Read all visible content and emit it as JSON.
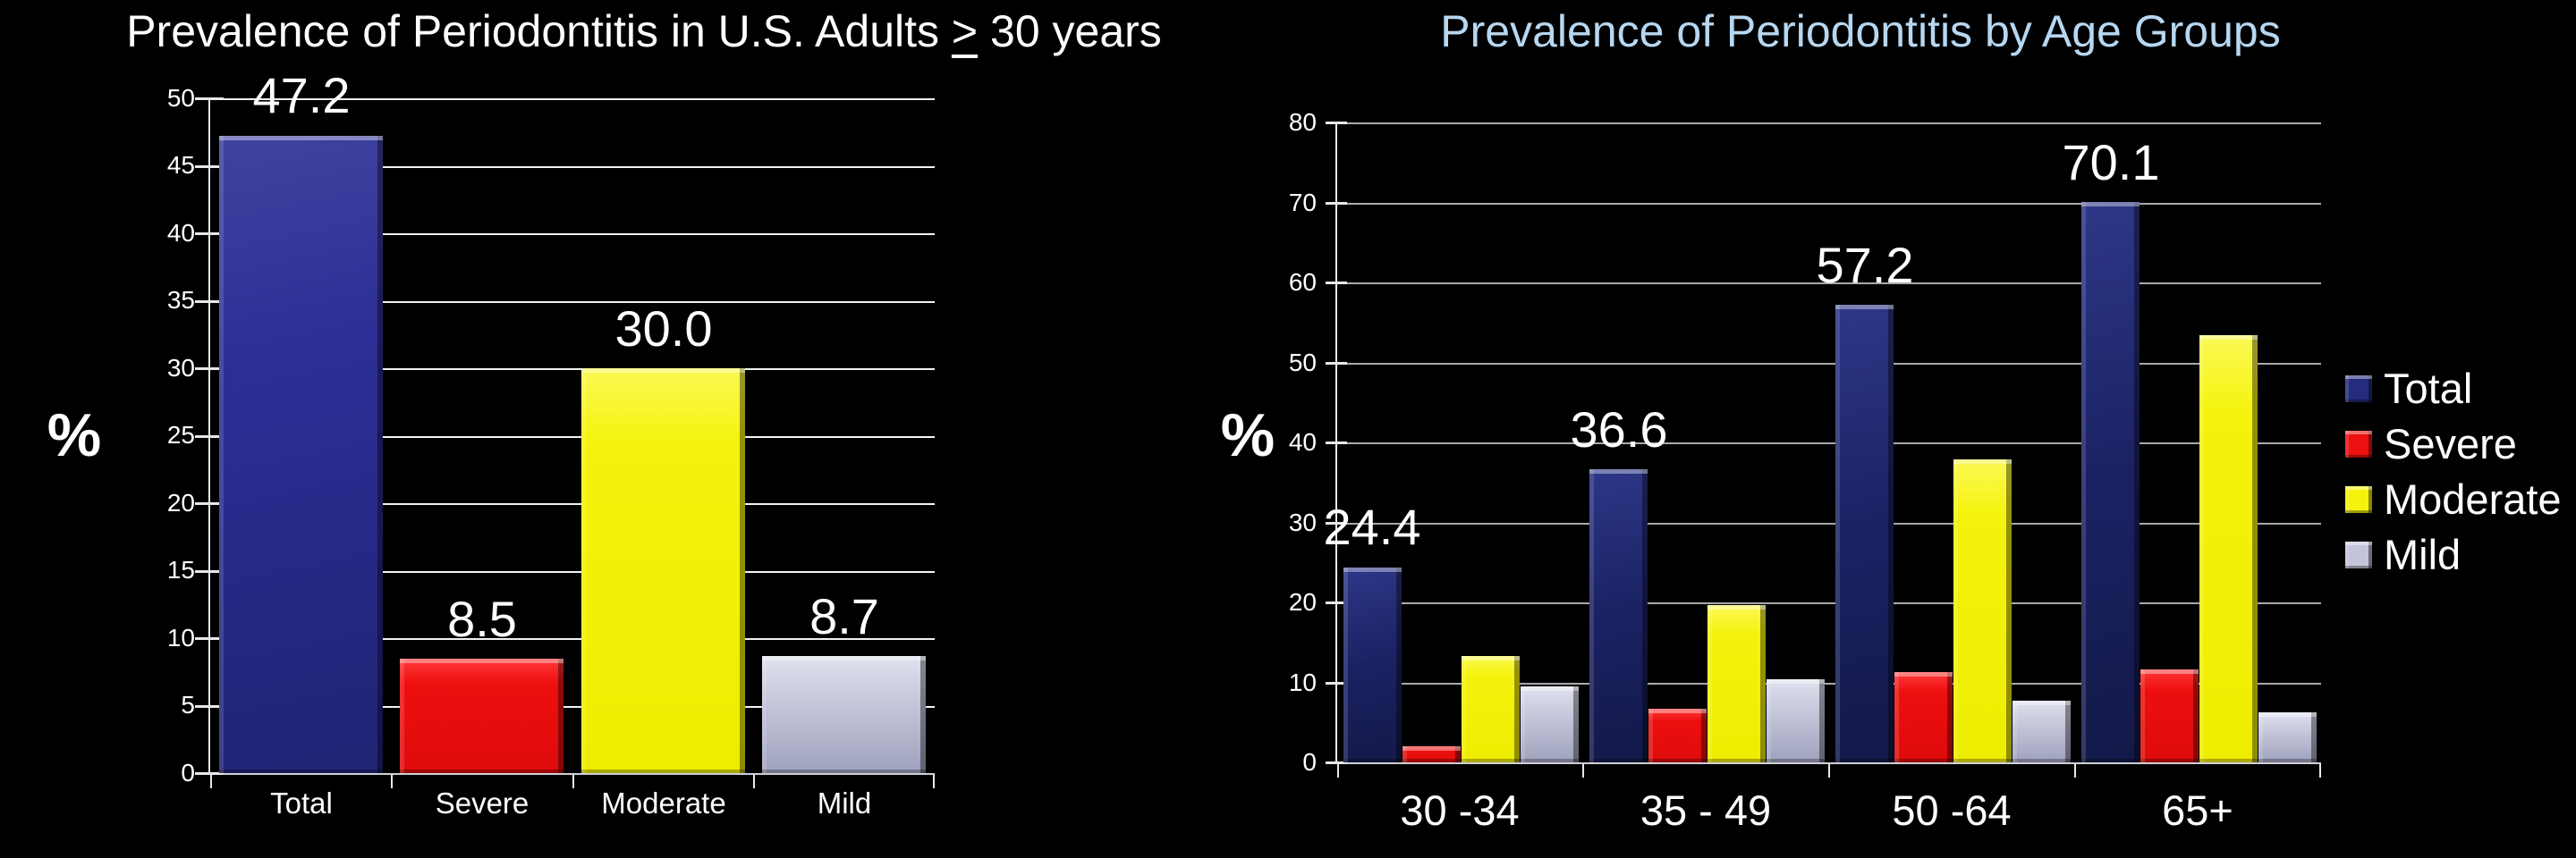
{
  "background": "#000000",
  "chart_data": [
    {
      "type": "bar",
      "title": "Prevalence of Periodontitis in U.S. Adults ≥ 30 years",
      "title_parts": {
        "prefix": "Prevalence of Periodontitis in U.S. Adults ",
        "symbol": ">",
        "suffix": " 30 years"
      },
      "title_color": "#ffffff",
      "ylabel": "%",
      "ylim": [
        0,
        50
      ],
      "ytick_step": 5,
      "yticks": [
        50,
        45,
        40,
        35,
        30,
        25,
        20,
        15,
        10,
        5,
        0
      ],
      "grid": true,
      "categories": [
        "Total",
        "Severe",
        "Moderate",
        "Mild"
      ],
      "values": [
        47.2,
        8.5,
        30.0,
        8.7
      ],
      "labels": [
        "47.2",
        "8.5",
        "30.0",
        "8.7"
      ],
      "bar_colors": [
        "#2c2e96",
        "#ee1111",
        "#f5f30e",
        "#c0c2d8"
      ]
    },
    {
      "type": "bar",
      "title": "Prevalence of Periodontitis by Age Groups",
      "title_color": "#b7d7f1",
      "ylabel": "%",
      "ylim": [
        0,
        80
      ],
      "ytick_step": 10,
      "yticks": [
        80,
        70,
        60,
        50,
        40,
        30,
        20,
        10,
        0
      ],
      "grid": true,
      "categories": [
        "30 -34",
        "35 - 49",
        "50 -64",
        "65+"
      ],
      "series": [
        {
          "name": "Total",
          "color": "#1b2264",
          "values": [
            24.4,
            36.6,
            57.2,
            70.1
          ]
        },
        {
          "name": "Severe",
          "color": "#ee1111",
          "values": [
            2.0,
            6.7,
            11.3,
            11.6
          ]
        },
        {
          "name": "Moderate",
          "color": "#f5f30e",
          "values": [
            13.3,
            19.7,
            37.9,
            53.4
          ]
        },
        {
          "name": "Mild",
          "color": "#c0c2d8",
          "values": [
            9.5,
            10.4,
            7.7,
            6.3
          ]
        }
      ],
      "total_bar_labels": [
        "24.4",
        "36.6",
        "57.2",
        "70.1"
      ],
      "legend": [
        "Total",
        "Severe",
        "Moderate",
        "Mild"
      ],
      "legend_position": "right"
    }
  ]
}
